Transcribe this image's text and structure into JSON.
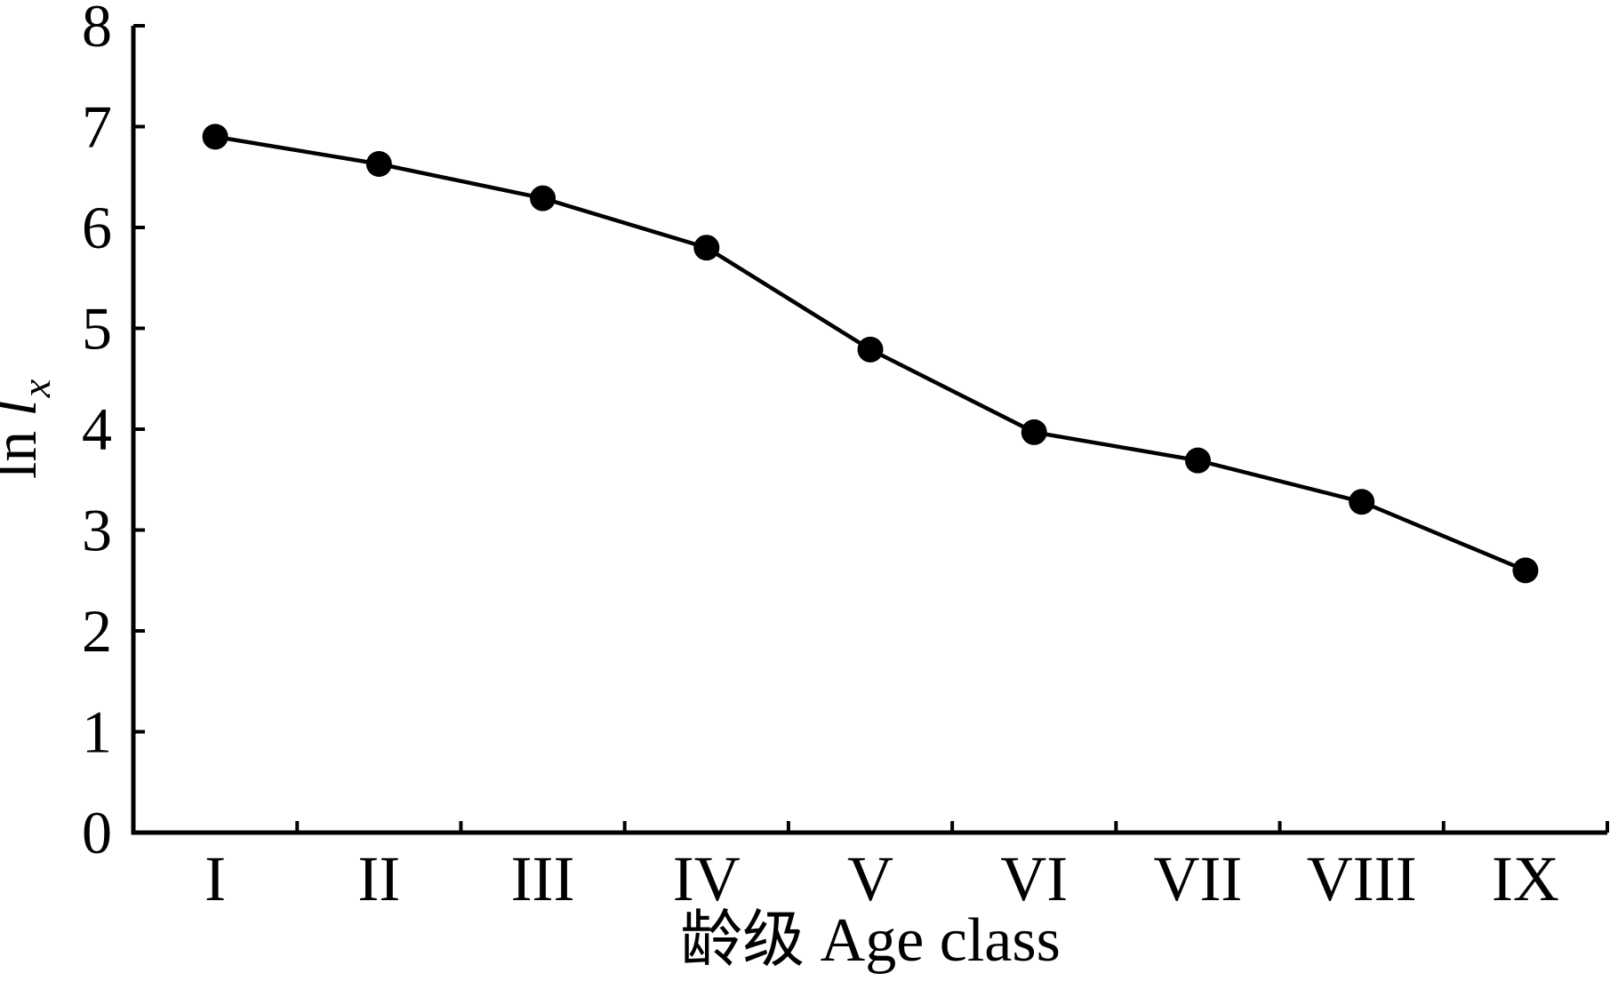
{
  "figure": {
    "background": "#ffffff",
    "ink": "#000000"
  },
  "chart_data": {
    "type": "line",
    "xlabel": "龄级 Age class",
    "ylabel": "ln lx",
    "ylabel_parts": {
      "prefix": "ln",
      "variable": "l",
      "subscript": "x"
    },
    "categories": [
      "I",
      "II",
      "III",
      "IV",
      "V",
      "VI",
      "VII",
      "VIII",
      "IX"
    ],
    "values": [
      6.9,
      6.63,
      6.29,
      5.8,
      4.79,
      3.97,
      3.69,
      3.28,
      2.6
    ],
    "yticks": [
      0,
      1,
      2,
      3,
      4,
      5,
      6,
      7,
      8
    ],
    "ylim": [
      0,
      8
    ],
    "grid": false,
    "legend": "none",
    "marker": "filled-circle",
    "line_color": "#000000",
    "marker_color": "#000000"
  }
}
